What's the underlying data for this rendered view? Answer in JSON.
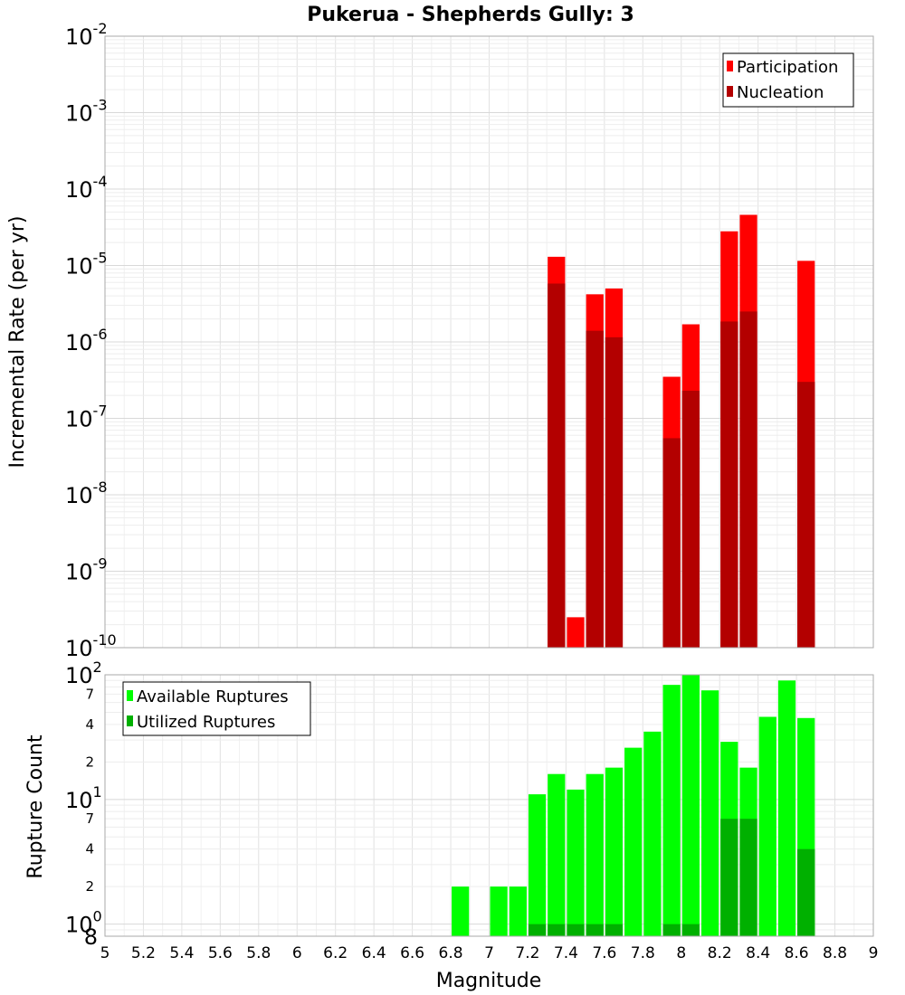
{
  "chart_data": [
    {
      "type": "bar",
      "title": "Pukerua - Shepherds Gully: 3",
      "ylabel": "Incremental Rate (per yr)",
      "xlabel": "",
      "yscale": "log",
      "ylim": [
        1e-10,
        0.01
      ],
      "xlim": [
        5,
        9
      ],
      "bin_width": 0.1,
      "grid": true,
      "legend_position": "top-right",
      "y_tick_decades": [
        {
          "base": "10",
          "exp": "-2"
        },
        {
          "base": "10",
          "exp": "-3"
        },
        {
          "base": "10",
          "exp": "-4"
        },
        {
          "base": "10",
          "exp": "-5"
        },
        {
          "base": "10",
          "exp": "-6"
        },
        {
          "base": "10",
          "exp": "-7"
        },
        {
          "base": "10",
          "exp": "-8"
        },
        {
          "base": "10",
          "exp": "-9"
        },
        {
          "base": "10",
          "exp": "-10"
        }
      ],
      "series": [
        {
          "name": "Participation",
          "color": "#ff0000",
          "x": [
            7.35,
            7.45,
            7.55,
            7.65,
            7.95,
            8.05,
            8.25,
            8.35,
            8.65
          ],
          "values": [
            1.3e-05,
            2.5e-10,
            4.2e-06,
            5e-06,
            3.5e-07,
            1.7e-06,
            2.8e-05,
            4.6e-05,
            1.15e-05
          ]
        },
        {
          "name": "Nucleation",
          "color": "#b30000",
          "x": [
            7.35,
            7.55,
            7.65,
            7.95,
            8.05,
            8.25,
            8.35,
            8.65
          ],
          "values": [
            5.8e-06,
            1.4e-06,
            1.15e-06,
            5.5e-08,
            2.3e-07,
            1.85e-06,
            2.5e-06,
            3e-07
          ]
        }
      ]
    },
    {
      "type": "bar",
      "title": "",
      "ylabel": "Rupture Count",
      "xlabel": "Magnitude",
      "yscale": "log",
      "ylim": [
        0.8,
        100
      ],
      "xlim": [
        5,
        9
      ],
      "bin_width": 0.1,
      "grid": true,
      "legend_position": "top-left",
      "x_ticks": [
        "5",
        "5.2",
        "5.4",
        "5.6",
        "5.8",
        "6",
        "6.2",
        "6.4",
        "6.6",
        "6.8",
        "7",
        "7.2",
        "7.4",
        "7.6",
        "7.8",
        "8",
        "8.2",
        "8.4",
        "8.6",
        "8.8",
        "9"
      ],
      "y_tick_decades": [
        {
          "base": "10",
          "exp": "2"
        },
        {
          "base": "10",
          "exp": "1"
        },
        {
          "base": "10",
          "exp": "0"
        }
      ],
      "y_minor_ticks": [
        {
          "label": "7",
          "value": 70
        },
        {
          "label": "4",
          "value": 40
        },
        {
          "label": "2",
          "value": 20
        },
        {
          "label": "7",
          "value": 7
        },
        {
          "label": "4",
          "value": 4
        },
        {
          "label": "2",
          "value": 2
        }
      ],
      "y_bottom_label": "8",
      "series": [
        {
          "name": "Available Ruptures",
          "color": "#00ff00",
          "x": [
            6.85,
            7.05,
            7.15,
            7.25,
            7.35,
            7.45,
            7.55,
            7.65,
            7.75,
            7.85,
            7.95,
            8.05,
            8.15,
            8.25,
            8.35,
            8.45,
            8.55,
            8.65
          ],
          "values": [
            2,
            2,
            2,
            11,
            16,
            12,
            16,
            18,
            26,
            35,
            83,
            100,
            75,
            29,
            18,
            46,
            90,
            45
          ]
        },
        {
          "name": "Utilized Ruptures",
          "color": "#00b000",
          "x": [
            7.25,
            7.35,
            7.45,
            7.55,
            7.65,
            7.95,
            8.05,
            8.25,
            8.35,
            8.65
          ],
          "values": [
            1,
            1,
            1,
            1,
            1,
            1,
            1,
            7,
            7,
            4
          ]
        }
      ]
    }
  ]
}
